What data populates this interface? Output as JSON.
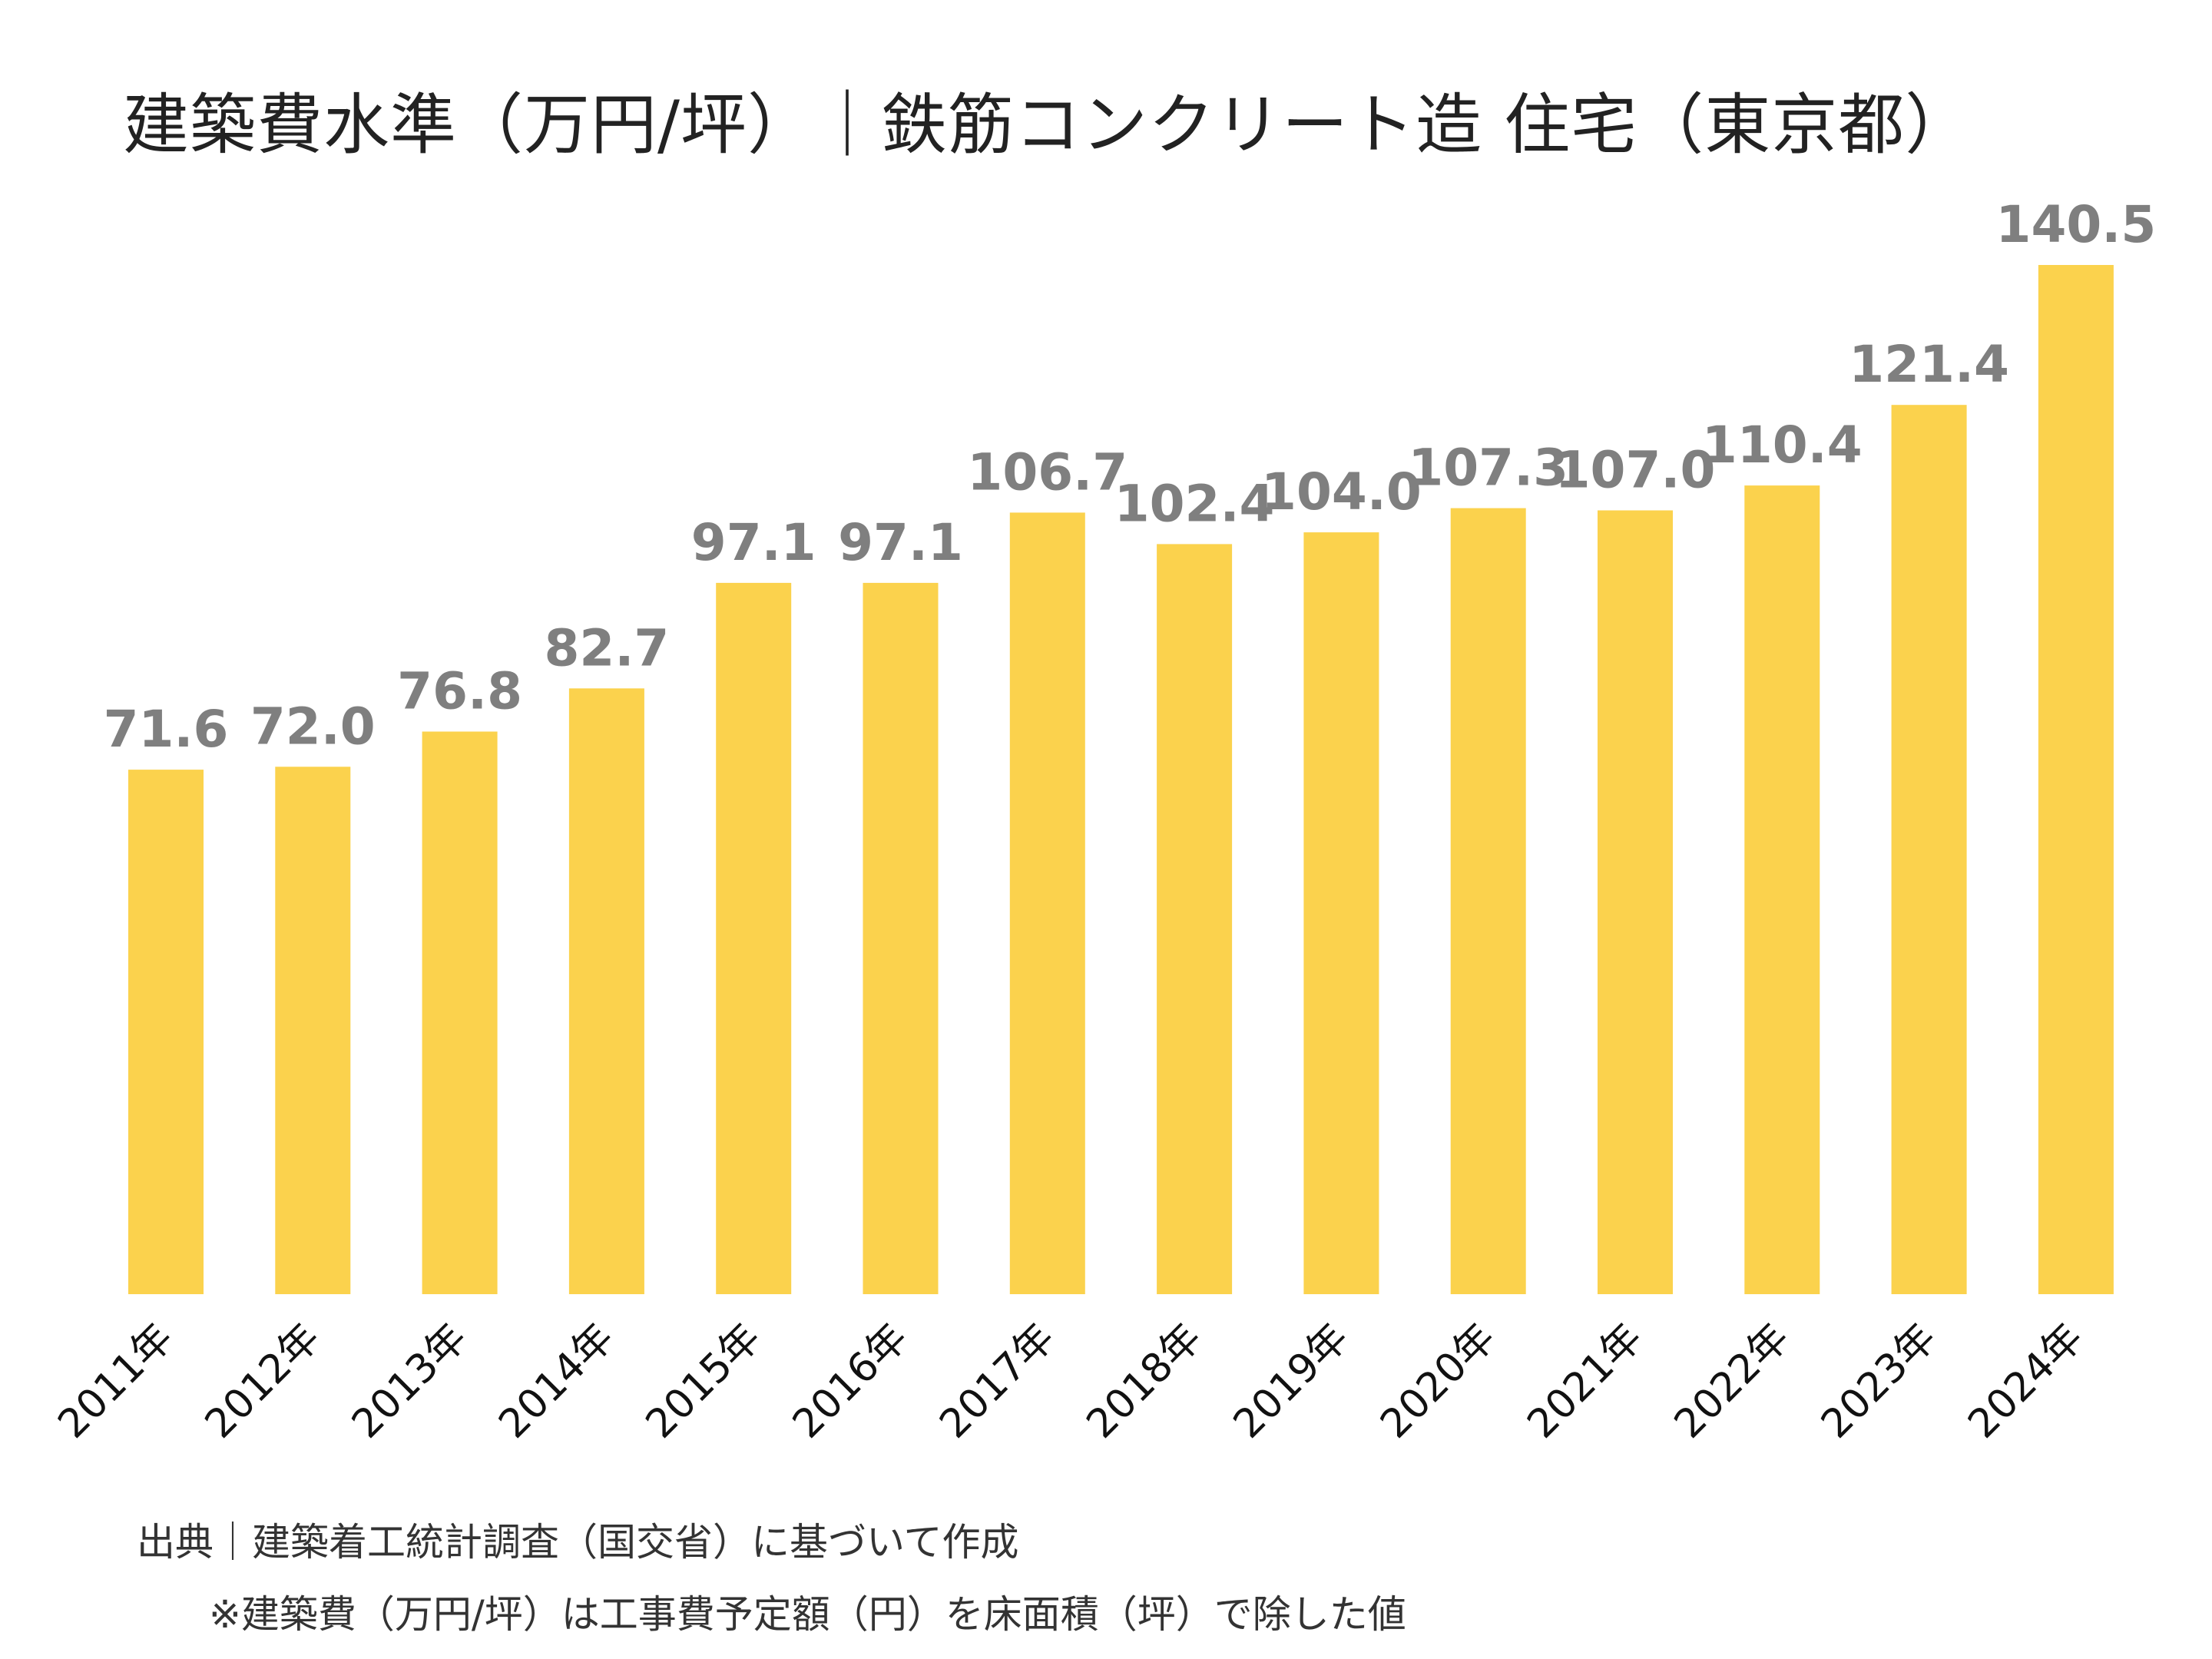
{
  "chart_data": {
    "type": "bar",
    "title": "建築費水準（万円/坪）｜鉄筋コンクリート造 住宅（東京都）",
    "categories": [
      "2011年",
      "2012年",
      "2013年",
      "2014年",
      "2015年",
      "2016年",
      "2017年",
      "2018年",
      "2019年",
      "2020年",
      "2021年",
      "2022年",
      "2023年",
      "2024年"
    ],
    "values": [
      71.6,
      72.0,
      76.8,
      82.7,
      97.1,
      97.1,
      106.7,
      102.4,
      104.0,
      107.3,
      107.0,
      110.4,
      121.4,
      140.5
    ],
    "value_labels": [
      "71.6",
      "72.0",
      "76.8",
      "82.7",
      "97.1",
      "97.1",
      "106.7",
      "102.4",
      "104.0",
      "107.3",
      "107.0",
      "110.4",
      "121.4",
      "140.5"
    ],
    "ylim": [
      0,
      140.5
    ],
    "bar_color": "#FBD24D",
    "label_color": "#7F7F7F",
    "grid": false,
    "legend": "none",
    "source": "出典｜建築着工統計調査（国交省）に基づいて作成",
    "note": "※建築費（万円/坪）は工事費予定額（円）を床面積（坪）で除した値"
  }
}
